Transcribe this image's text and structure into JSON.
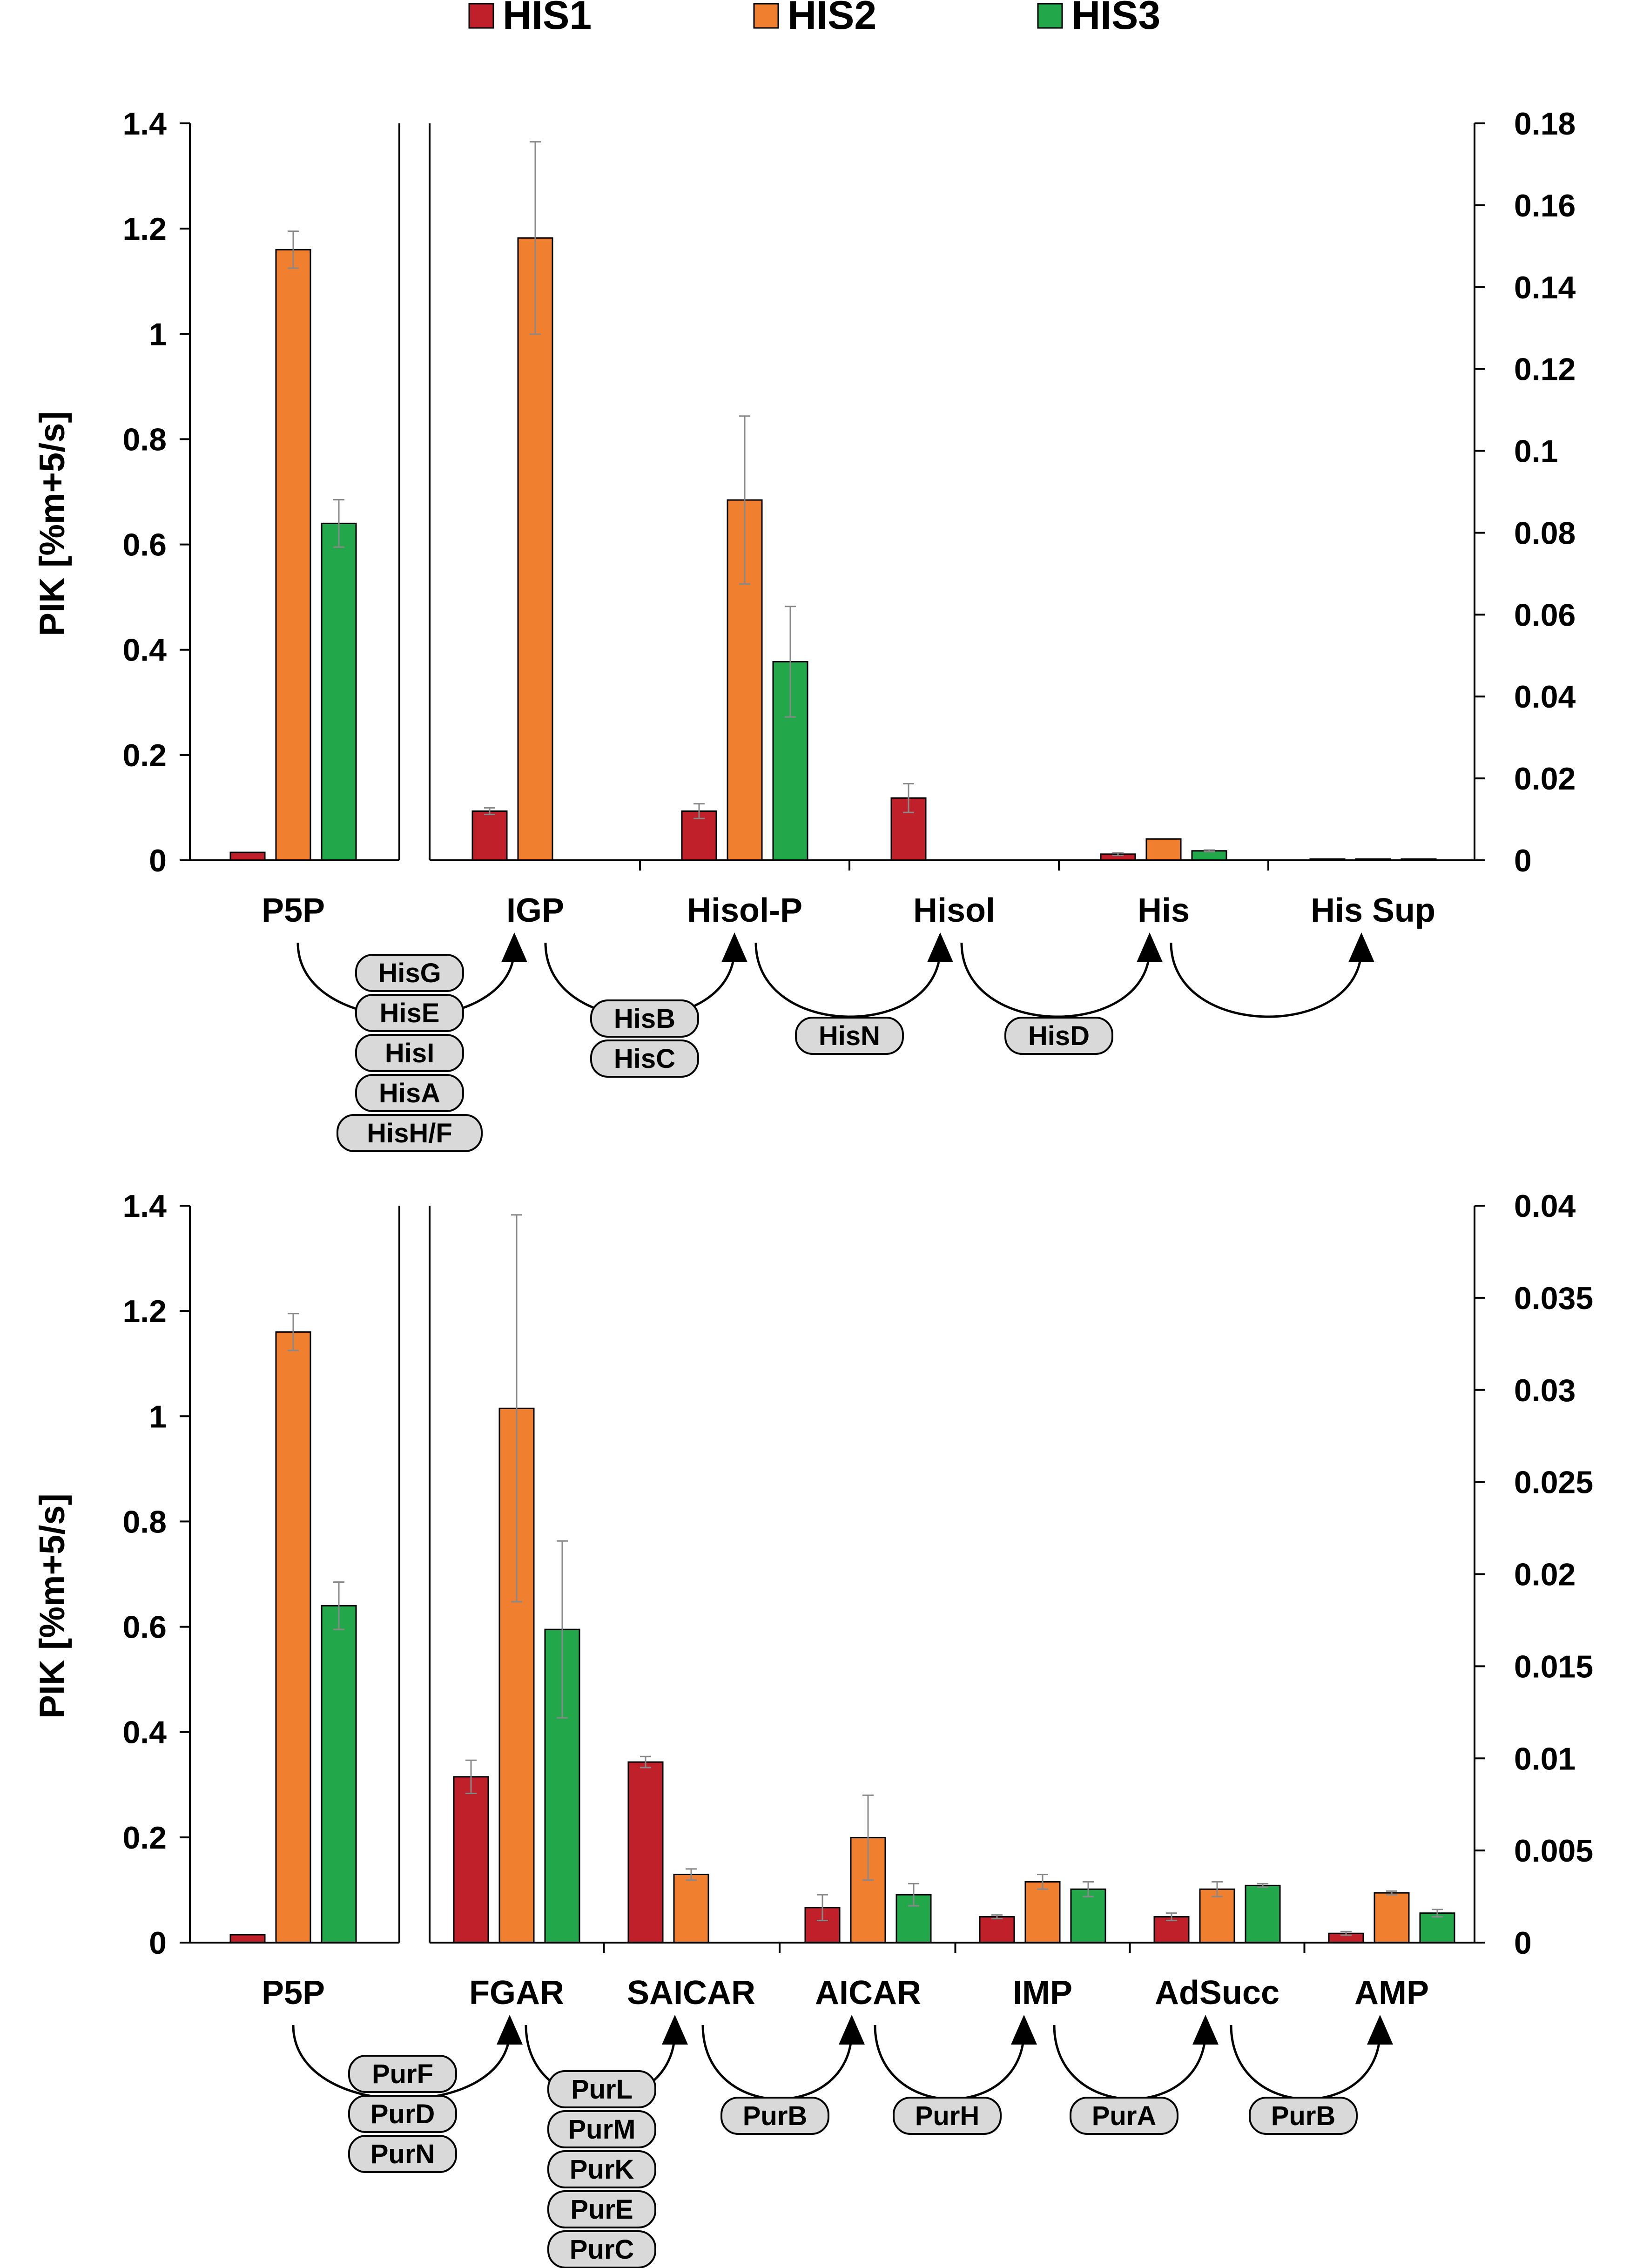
{
  "legend": [
    {
      "label": "HIS1",
      "color": "#c0202a"
    },
    {
      "label": "HIS2",
      "color": "#f08030"
    },
    {
      "label": "HIS3",
      "color": "#22a84a"
    }
  ],
  "chart_data": [
    {
      "type": "bar",
      "title": "",
      "ylabel": "PIK [%m+5/s]",
      "ylim_left": [
        0,
        1.4
      ],
      "ylim_right": [
        0,
        0.18
      ],
      "left_ticks": [
        "0",
        "0.2",
        "0.4",
        "0.6",
        "0.8",
        "1",
        "1.2",
        "1.4"
      ],
      "right_ticks": [
        "0",
        "0.02",
        "0.04",
        "0.06",
        "0.08",
        "0.1",
        "0.12",
        "0.14",
        "0.16",
        "0.18"
      ],
      "left_axis_categories": [
        "P5P"
      ],
      "categories": [
        "P5P",
        "IGP",
        "Hisol-P",
        "Hisol",
        "His",
        "His Sup"
      ],
      "series": [
        {
          "name": "HIS1",
          "values": [
            0.015,
            0.012,
            0.012,
            0.0152,
            0.0015,
            0.0003
          ],
          "errors": [
            0,
            0.0008,
            0.0018,
            0.0035,
            0.0003,
            0
          ]
        },
        {
          "name": "HIS2",
          "values": [
            1.16,
            0.152,
            0.088,
            0,
            0.0052,
            0.0003
          ],
          "errors": [
            0.035,
            0.0235,
            0.0205,
            0,
            0,
            0
          ]
        },
        {
          "name": "HIS3",
          "values": [
            0.64,
            0,
            0.0485,
            0,
            0.0023,
            0.0003
          ],
          "errors": [
            0.045,
            0,
            0.0135,
            0,
            0.0002,
            0
          ]
        }
      ],
      "pathway": [
        "HisG",
        "HisE",
        "HisI",
        "HisA",
        "HisH/F",
        "HisB",
        "HisC",
        "HisN",
        "HisD"
      ]
    },
    {
      "type": "bar",
      "title": "",
      "ylabel": "PIK [%m+5/s]",
      "ylim_left": [
        0,
        1.4
      ],
      "ylim_right": [
        0,
        0.04
      ],
      "left_ticks": [
        "0",
        "0.2",
        "0.4",
        "0.6",
        "0.8",
        "1",
        "1.2",
        "1.4"
      ],
      "right_ticks": [
        "0",
        "0.005",
        "0.01",
        "0.015",
        "0.02",
        "0.025",
        "0.03",
        "0.035",
        "0.04"
      ],
      "left_axis_categories": [
        "P5P"
      ],
      "categories": [
        "P5P",
        "FGAR",
        "SAICAR",
        "AICAR",
        "IMP",
        "AdSucc",
        "AMP"
      ],
      "series": [
        {
          "name": "HIS1",
          "values": [
            0.015,
            0.009,
            0.0098,
            0.0019,
            0.0014,
            0.0014,
            0.0005
          ],
          "errors": [
            0,
            0.0009,
            0.0003,
            0.0007,
            0.0001,
            0.0002,
            0.0001
          ]
        },
        {
          "name": "HIS2",
          "values": [
            1.16,
            0.029,
            0.0037,
            0.0057,
            0.0033,
            0.0029,
            0.0027
          ],
          "errors": [
            0.035,
            0.0105,
            0.0003,
            0.0023,
            0.0004,
            0.0004,
            0.0001
          ]
        },
        {
          "name": "HIS3",
          "values": [
            0.64,
            0.017,
            0,
            0.0026,
            0.0029,
            0.0031,
            0.0016
          ],
          "errors": [
            0.045,
            0.0048,
            0,
            0.0006,
            0.0004,
            0.0001,
            0.0002
          ]
        }
      ],
      "pathway": [
        "PurF",
        "PurD",
        "PurN",
        "PurL",
        "PurM",
        "PurK",
        "PurE",
        "PurC",
        "PurB",
        "PurH",
        "PurA",
        "PurB"
      ]
    }
  ]
}
